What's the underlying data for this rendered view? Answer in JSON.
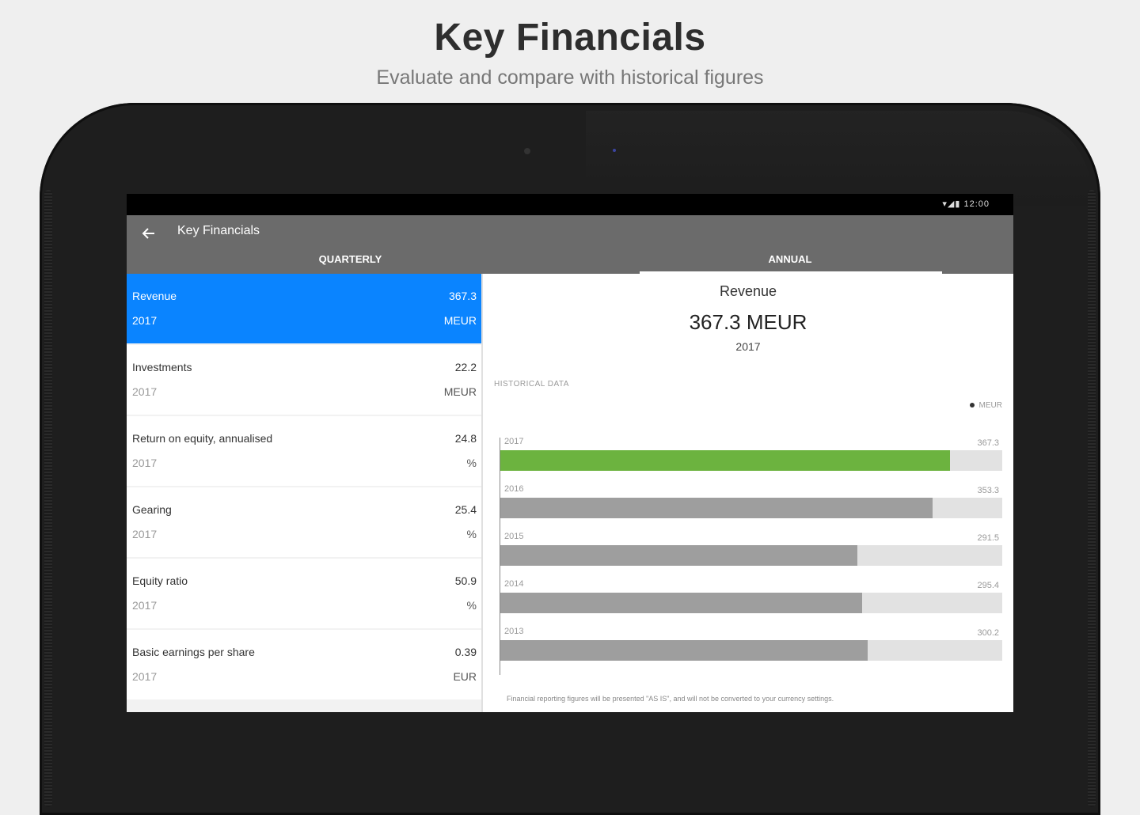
{
  "promo": {
    "title": "Key Financials",
    "subtitle": "Evaluate and compare with historical figures"
  },
  "status_bar": {
    "icons": "▾◢▮ 12:00"
  },
  "app_bar": {
    "back_icon": "arrow-left",
    "title": "Key Financials",
    "tabs": [
      {
        "label": "QUARTERLY",
        "selected": false
      },
      {
        "label": "ANNUAL",
        "selected": true
      }
    ]
  },
  "list": {
    "items": [
      {
        "label": "Revenue",
        "year": "2017",
        "value": "367.3",
        "unit": "MEUR",
        "selected": true
      },
      {
        "label": "Investments",
        "year": "2017",
        "value": "22.2",
        "unit": "MEUR",
        "selected": false
      },
      {
        "label": "Return on equity, annualised",
        "year": "2017",
        "value": "24.8",
        "unit": "%",
        "selected": false
      },
      {
        "label": "Gearing",
        "year": "2017",
        "value": "25.4",
        "unit": "%",
        "selected": false
      },
      {
        "label": "Equity ratio",
        "year": "2017",
        "value": "50.9",
        "unit": "%",
        "selected": false
      },
      {
        "label": "Basic earnings per share",
        "year": "2017",
        "value": "0.39",
        "unit": "EUR",
        "selected": false
      }
    ]
  },
  "detail": {
    "label": "Revenue",
    "value": "367.3 MEUR",
    "year": "2017",
    "historical_title": "HISTORICAL DATA",
    "legend": "MEUR",
    "footnote": "Financial reporting figures will be presented \"AS IS\", and will not be converted to your currency settings."
  },
  "colors": {
    "selected_row": "#0a84ff",
    "current_bar": "#6cb33f",
    "past_bar": "#9e9e9e",
    "app_bar": "#6b6b6b"
  },
  "chart_data": {
    "type": "bar",
    "orientation": "horizontal",
    "categories": [
      "2017",
      "2016",
      "2015",
      "2014",
      "2013"
    ],
    "values": [
      367.3,
      353.3,
      291.5,
      295.4,
      300.2
    ],
    "value_labels": [
      "367.3",
      "353.3",
      "291.5",
      "295.4",
      "300.2"
    ],
    "xlim": [
      0,
      410
    ],
    "legend": "MEUR",
    "grid": false
  }
}
